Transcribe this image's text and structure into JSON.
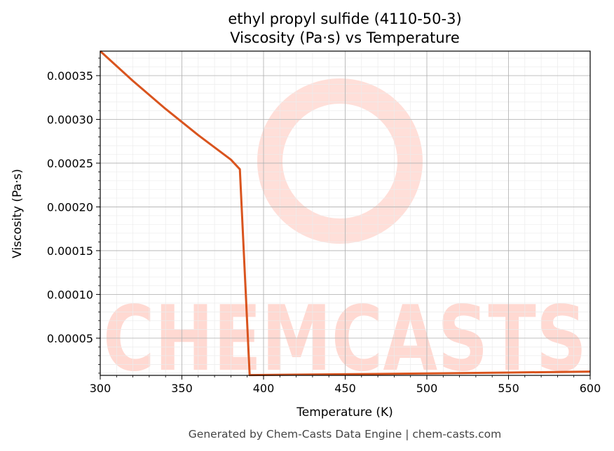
{
  "chart_data": {
    "type": "line",
    "title_line1": "ethyl propyl sulfide (4110-50-3)",
    "title_line2": "Viscosity (Pa·s) vs Temperature",
    "xlabel": "Temperature (K)",
    "ylabel": "Viscosity (Pa·s)",
    "xlim": [
      300,
      600
    ],
    "ylim": [
      7.5e-06,
      0.000378
    ],
    "x_ticks": [
      300,
      350,
      400,
      450,
      500,
      550,
      600
    ],
    "x_tick_labels": [
      "300",
      "350",
      "400",
      "450",
      "500",
      "550",
      "600"
    ],
    "y_ticks": [
      5e-05,
      0.0001,
      0.00015,
      0.0002,
      0.00025,
      0.0003,
      0.00035
    ],
    "y_tick_labels": [
      "0.00005",
      "0.00010",
      "0.00015",
      "0.00020",
      "0.00025",
      "0.00030",
      "0.00035"
    ],
    "grid": true,
    "minor_grid": true,
    "line_color": "#d9541e",
    "series": [
      {
        "x": [
          300,
          310,
          320,
          330,
          340,
          350,
          360,
          370,
          380,
          385.5,
          391.5,
          420,
          450,
          500,
          550,
          600
        ],
        "y": [
          0.000378,
          0.000361,
          0.000344,
          0.000328,
          0.000312,
          0.000297,
          0.000282,
          0.000268,
          0.000254,
          0.000243,
          7.8e-06,
          8.3e-06,
          8.8e-06,
          9.7e-06,
          1.07e-05,
          1.18e-05
        ]
      }
    ]
  },
  "watermark": {
    "text": "CHEMCASTS",
    "color": "#ffd9d2"
  },
  "footer": "Generated by Chem-Casts Data Engine | chem-casts.com"
}
